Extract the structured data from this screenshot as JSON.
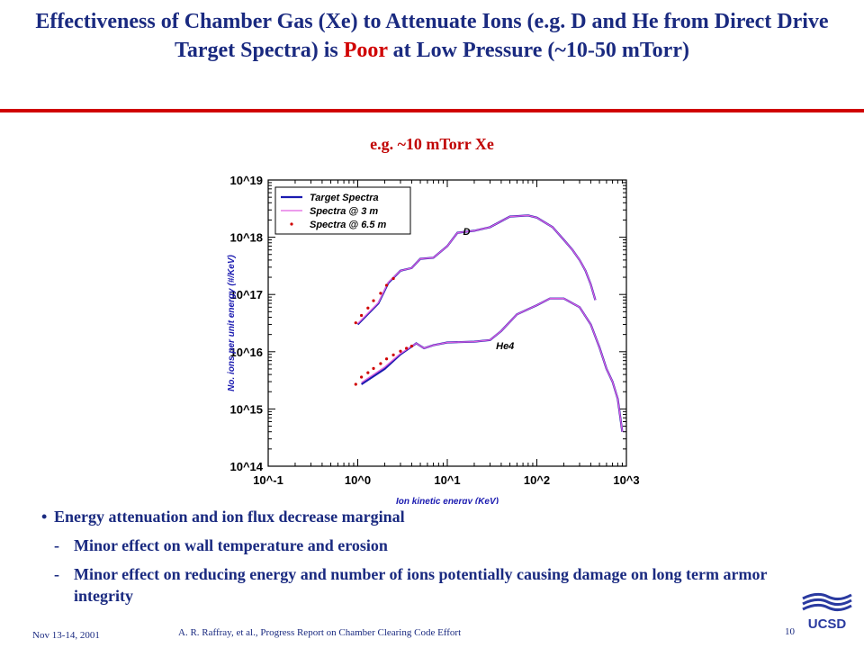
{
  "slide": {
    "title_part1": "Effectiveness of Chamber Gas (Xe) to Attenuate Ions (e.g. D and He from Direct Drive Target Spectra) is ",
    "title_highlight": "Poor",
    "title_part2": " at Low Pressure (~10-50 mTorr)",
    "subtitle": "e.g. ~10 mTorr Xe",
    "bullets": {
      "main": "Energy attenuation and ion flux decrease marginal",
      "sub": [
        "Minor effect on wall temperature and erosion",
        "Minor effect on reducing energy and number of ions potentially causing damage on long term armor integrity"
      ]
    },
    "footer": {
      "date": "Nov 13-14, 2001",
      "reference": "A. R. Raffray, et al., Progress Report on Chamber Clearing Code Effort",
      "page": "10",
      "logo_text": "UCSD"
    }
  },
  "chart_data": {
    "type": "line",
    "x_scale": "log",
    "y_scale": "log",
    "xlim": [
      0.1,
      1000
    ],
    "ylim": [
      100000000000000.0,
      1e+19
    ],
    "xlabel": "Ion kinetic energy (KeV)",
    "ylabel": "No. ions per unit energy (#/KeV)",
    "x_ticks": [
      "10^-1",
      "10^0",
      "10^1",
      "10^2",
      "10^3"
    ],
    "y_ticks": [
      "10^14",
      "10^15",
      "10^16",
      "10^17",
      "10^18",
      "10^19"
    ],
    "legend_position": "top-left",
    "annotations": [
      {
        "text": "D",
        "x": 15,
        "y": 1.1e+18
      },
      {
        "text": "He4",
        "x": 35,
        "y": 1.1e+16
      }
    ],
    "series": [
      {
        "name": "Target Spectra",
        "color": "#1a1ab0",
        "style": "line",
        "groups": [
          {
            "x": [
              1.0,
              1.7,
              2.2,
              3.0,
              4.0,
              5.0,
              7.0,
              10,
              13,
              20,
              30,
              50,
              80,
              100,
              150,
              200,
              250,
              300,
              350,
              400,
              450
            ],
            "y": [
              3e+16,
              7e+16,
              1.6e+17,
              2.6e+17,
              2.9e+17,
              4.2e+17,
              4.4e+17,
              7e+17,
              1.2e+18,
              1.3e+18,
              1.5e+18,
              2.3e+18,
              2.4e+18,
              2.2e+18,
              1.5e+18,
              9e+17,
              6e+17,
              4e+17,
              2.6e+17,
              1.5e+17,
              8e+16
            ]
          },
          {
            "x": [
              1.1,
              2.0,
              3.0,
              4.5,
              5.5,
              7.0,
              10,
              20,
              30,
              40,
              60,
              100,
              140,
              200,
              300,
              400,
              500,
              600,
              700,
              800,
              900
            ],
            "y": [
              2700000000000000.0,
              5000000000000000.0,
              9000000000000000.0,
              1.4e+16,
              1.15e+16,
              1.3e+16,
              1.45e+16,
              1.5e+16,
              1.6e+16,
              2.3e+16,
              4.5e+16,
              6.5e+16,
              8.5e+16,
              8.5e+16,
              6e+16,
              3e+16,
              1.2e+16,
              5000000000000000.0,
              3000000000000000.0,
              1500000000000000.0,
              400000000000000.0
            ]
          }
        ]
      },
      {
        "name": "Spectra @ 3 m",
        "color": "#e060e0",
        "style": "line",
        "groups": [
          {
            "x": [
              1.0,
              1.7,
              2.2,
              3.0,
              4.0,
              5.0,
              7.0,
              10,
              13,
              20,
              30,
              50,
              80,
              100,
              150,
              200,
              250,
              300,
              350,
              400,
              450
            ],
            "y": [
              3.1e+16,
              7.2e+16,
              1.65e+17,
              2.6e+17,
              2.9e+17,
              4.2e+17,
              4.4e+17,
              7e+17,
              1.2e+18,
              1.3e+18,
              1.5e+18,
              2.3e+18,
              2.4e+18,
              2.2e+18,
              1.5e+18,
              9e+17,
              6e+17,
              4e+17,
              2.6e+17,
              1.5e+17,
              8e+16
            ]
          },
          {
            "x": [
              1.1,
              2.0,
              3.0,
              4.5,
              5.5,
              7.0,
              10,
              20,
              30,
              40,
              60,
              100,
              140,
              200,
              300,
              400,
              500,
              600,
              700,
              800,
              900
            ],
            "y": [
              2900000000000000.0,
              5400000000000000.0,
              9300000000000000.0,
              1.4e+16,
              1.15e+16,
              1.3e+16,
              1.45e+16,
              1.5e+16,
              1.6e+16,
              2.3e+16,
              4.5e+16,
              6.5e+16,
              8.5e+16,
              8.5e+16,
              6e+16,
              3e+16,
              1.2e+16,
              5000000000000000.0,
              3000000000000000.0,
              1500000000000000.0,
              400000000000000.0
            ]
          }
        ]
      },
      {
        "name": "Spectra @ 6.5 m",
        "color": "#d00000",
        "style": "dots",
        "groups": [
          {
            "x": [
              0.95,
              1.1,
              1.3,
              1.5,
              1.8,
              2.1,
              2.5
            ],
            "y": [
              3.2e+16,
              4.3e+16,
              5.8e+16,
              7.8e+16,
              1.05e+17,
              1.45e+17,
              1.9e+17
            ]
          },
          {
            "x": [
              0.95,
              1.1,
              1.3,
              1.5,
              1.8,
              2.1,
              2.5,
              3.0,
              3.5,
              4.0
            ],
            "y": [
              2700000000000000.0,
              3600000000000000.0,
              4300000000000000.0,
              5100000000000000.0,
              6200000000000000.0,
              7500000000000000.0,
              8800000000000000.0,
              1.02e+16,
              1.15e+16,
              1.25e+16
            ]
          }
        ]
      }
    ]
  }
}
